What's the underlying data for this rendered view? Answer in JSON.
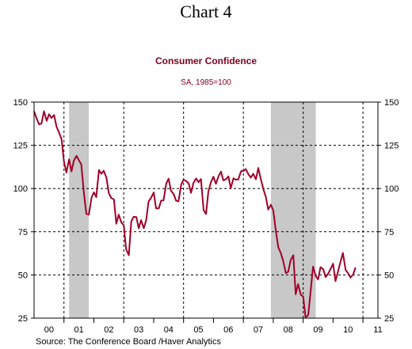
{
  "page_heading": "Chart 4",
  "chart_data": {
    "type": "line",
    "title": "Consumer Confidence",
    "subtitle": "SA, 1985=100",
    "source": "Source:  The Conference Board /Haver Analytics",
    "title_color": "#800020",
    "subtitle_color": "#800020",
    "line_color": "#a00028",
    "shade_color": "#c8c8c8",
    "grid": true,
    "ylim": [
      25,
      150
    ],
    "yticks": [
      25,
      50,
      75,
      100,
      125,
      150
    ],
    "ytick_labels": [
      "25",
      "50",
      "75",
      "100",
      "125",
      "150"
    ],
    "xlim": [
      2000,
      2011.5
    ],
    "xtick_labels": [
      "00",
      "01",
      "02",
      "03",
      "04",
      "05",
      "06",
      "07",
      "08",
      "09",
      "10",
      "11"
    ],
    "recessions": [
      [
        2001.17,
        2001.83
      ],
      [
        2007.92,
        2009.42
      ]
    ],
    "series": [
      {
        "x": [
          2000.0,
          2000.08,
          2000.17,
          2000.25,
          2000.33,
          2000.42,
          2000.5,
          2000.58,
          2000.67,
          2000.75,
          2000.83,
          2000.92,
          2001.0,
          2001.08,
          2001.17,
          2001.25,
          2001.33,
          2001.42,
          2001.5,
          2001.58,
          2001.67,
          2001.75,
          2001.83,
          2001.92,
          2002.0,
          2002.08,
          2002.17,
          2002.25,
          2002.33,
          2002.42,
          2002.5,
          2002.58,
          2002.67,
          2002.75,
          2002.83,
          2002.92,
          2003.0,
          2003.08,
          2003.17,
          2003.25,
          2003.33,
          2003.42,
          2003.5,
          2003.58,
          2003.67,
          2003.75,
          2003.83,
          2003.92,
          2004.0,
          2004.08,
          2004.17,
          2004.25,
          2004.33,
          2004.42,
          2004.5,
          2004.58,
          2004.67,
          2004.75,
          2004.83,
          2004.92,
          2005.0,
          2005.08,
          2005.17,
          2005.25,
          2005.33,
          2005.42,
          2005.5,
          2005.58,
          2005.67,
          2005.75,
          2005.83,
          2005.92,
          2006.0,
          2006.08,
          2006.17,
          2006.25,
          2006.33,
          2006.42,
          2006.5,
          2006.58,
          2006.67,
          2006.75,
          2006.83,
          2006.92,
          2007.0,
          2007.08,
          2007.17,
          2007.25,
          2007.33,
          2007.42,
          2007.5,
          2007.58,
          2007.67,
          2007.75,
          2007.83,
          2007.92,
          2008.0,
          2008.08,
          2008.17,
          2008.25,
          2008.33,
          2008.42,
          2008.5,
          2008.58,
          2008.67,
          2008.75,
          2008.83,
          2008.92,
          2009.0,
          2009.08,
          2009.17,
          2009.25,
          2009.33,
          2009.42,
          2009.5,
          2009.58,
          2009.67,
          2009.75,
          2009.83,
          2009.92,
          2010.0,
          2010.08,
          2010.17,
          2010.25,
          2010.33,
          2010.42,
          2010.5,
          2010.58,
          2010.67,
          2010.75
        ],
        "y": [
          144.7,
          140.8,
          137.1,
          137.7,
          144.7,
          139.2,
          143.0,
          140.8,
          142.5,
          135.8,
          132.6,
          128.6,
          115.7,
          109.2,
          116.9,
          109.9,
          116.1,
          118.9,
          116.3,
          114.0,
          97.0,
          85.3,
          84.9,
          94.6,
          97.8,
          95.0,
          110.7,
          108.5,
          110.3,
          106.3,
          97.4,
          94.5,
          93.7,
          79.6,
          84.9,
          80.3,
          78.8,
          64.8,
          61.4,
          81.0,
          83.6,
          83.5,
          77.0,
          81.7,
          77.0,
          81.7,
          92.5,
          94.8,
          97.7,
          88.5,
          88.5,
          93.0,
          93.1,
          102.8,
          105.7,
          98.7,
          96.7,
          92.9,
          92.6,
          102.3,
          105.1,
          104.4,
          103.0,
          97.5,
          103.1,
          105.8,
          103.6,
          105.5,
          87.5,
          85.2,
          98.3,
          103.8,
          106.8,
          102.7,
          107.2,
          109.8,
          104.7,
          105.4,
          107.0,
          100.2,
          105.9,
          105.1,
          105.3,
          110.0,
          110.2,
          111.2,
          108.2,
          106.3,
          108.5,
          105.3,
          111.9,
          105.6,
          99.5,
          95.2,
          87.8,
          90.6,
          87.3,
          76.4,
          65.9,
          62.8,
          58.1,
          51.0,
          51.9,
          58.5,
          61.4,
          38.8,
          44.7,
          38.6,
          37.4,
          25.3,
          26.9,
          40.8,
          54.8,
          49.3,
          47.4,
          54.5,
          53.4,
          48.7,
          50.6,
          53.6,
          56.5,
          46.4,
          52.3,
          57.7,
          62.7,
          52.9,
          51.0,
          48.5,
          50.2,
          54.3
        ]
      }
    ]
  }
}
